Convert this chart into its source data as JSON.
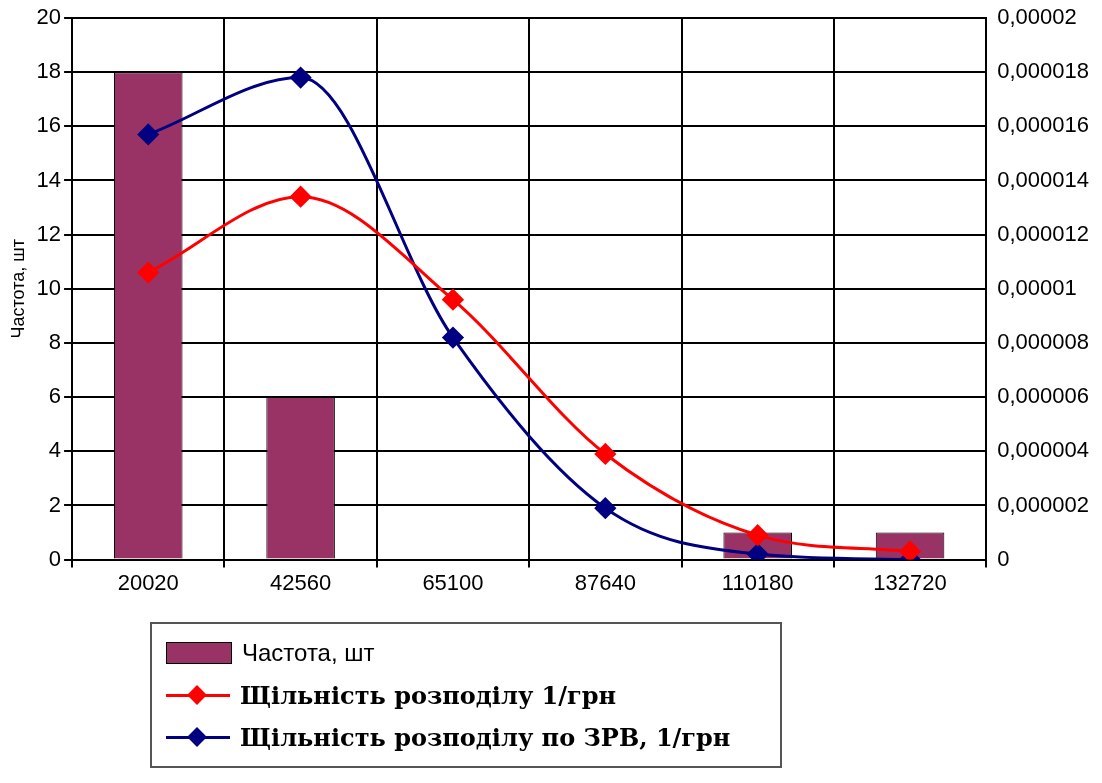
{
  "chart_data": {
    "type": "bar",
    "ylabel": "Частота, шт",
    "categories": [
      "20020",
      "42560",
      "65100",
      "87640",
      "110180",
      "132720"
    ],
    "series": [
      {
        "name": "Частота, шт",
        "color": "#993366",
        "values": [
          18,
          6,
          0,
          0,
          1,
          1
        ]
      },
      {
        "name": "Щільність розподілу 1/грн",
        "type": "line",
        "axis": "y2",
        "color": "#ff0000",
        "values": [
          1.06e-05,
          1.34e-05,
          9.6e-06,
          3.9e-06,
          9e-07,
          3e-07
        ]
      },
      {
        "name": "Щільність розподілу по ЗРВ, 1/грн",
        "type": "line",
        "axis": "y2",
        "color": "#000080",
        "values": [
          1.57e-05,
          1.78e-05,
          8.2e-06,
          1.9e-06,
          2e-07,
          0
        ]
      }
    ],
    "ylim": [
      0,
      20
    ],
    "yticks": [
      0,
      2,
      4,
      6,
      8,
      10,
      12,
      14,
      16,
      18,
      20
    ],
    "y2lim": [
      0,
      2e-05
    ],
    "y2ticks": [
      {
        "value": 0,
        "label": "0"
      },
      {
        "value": 2e-06,
        "label": "0,000002"
      },
      {
        "value": 4e-06,
        "label": "0,000004"
      },
      {
        "value": 6e-06,
        "label": "0,000006"
      },
      {
        "value": 8e-06,
        "label": "0,000008"
      },
      {
        "value": 1e-05,
        "label": "0,00001"
      },
      {
        "value": 1.2e-05,
        "label": "0,000012"
      },
      {
        "value": 1.4e-05,
        "label": "0,000014"
      },
      {
        "value": 1.6e-05,
        "label": "0,000016"
      },
      {
        "value": 1.8e-05,
        "label": "0,000018"
      },
      {
        "value": 2e-05,
        "label": "0,00002"
      }
    ],
    "grid": true,
    "legend": "bottom",
    "marker": "diamond",
    "line_style": "solid"
  }
}
